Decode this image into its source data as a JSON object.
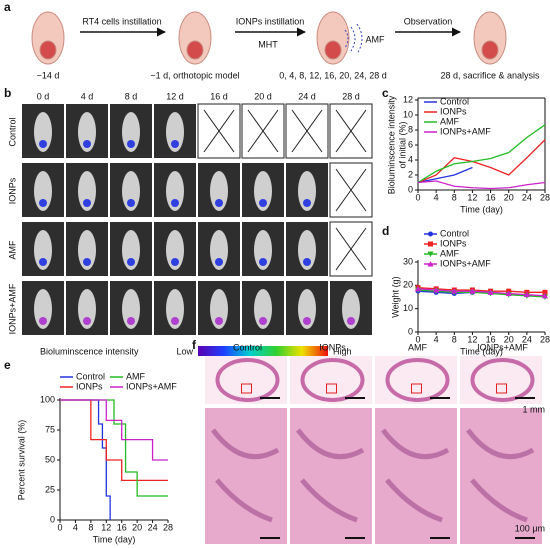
{
  "panels": {
    "labels": [
      "a",
      "b",
      "c",
      "d",
      "e",
      "f"
    ]
  },
  "timeline": {
    "steps": [
      "−14 d",
      "−1 d, orthotopic model",
      "0, 4, 8, 12, 16, 20, 24, 28 d",
      "28 d, sacrifice & analysis"
    ],
    "arrows": [
      "RT4 cells instillation",
      "IONPs instillation",
      "Observation"
    ],
    "under_arrow": "MHT",
    "field": "AMF"
  },
  "imaging": {
    "days": [
      "0 d",
      "4 d",
      "8 d",
      "12 d",
      "16 d",
      "20 d",
      "24 d",
      "28 d"
    ],
    "groups": [
      "Control",
      "IONPs",
      "AMF",
      "IONPs+AMF"
    ],
    "crossed": [
      [
        false,
        false,
        false,
        false,
        true,
        true,
        true,
        true
      ],
      [
        false,
        false,
        false,
        false,
        false,
        false,
        false,
        true
      ],
      [
        false,
        false,
        false,
        false,
        false,
        false,
        false,
        true
      ],
      [
        false,
        false,
        false,
        false,
        false,
        false,
        false,
        false
      ]
    ],
    "scale_title": "Bioluminscence intensity",
    "scale_low": "Low",
    "scale_high": "High"
  },
  "histology": {
    "groups": [
      "Control",
      "IONPs",
      "AMF",
      "IONPs+AMF"
    ],
    "scale_top": "1 mm",
    "scale_bottom": "100 μm"
  },
  "chart_data": [
    {
      "type": "line",
      "ylabel": [
        "Bioluminscence intensity",
        "of initial (%)"
      ],
      "xlabel": "Time (day)",
      "x": [
        0,
        4,
        8,
        12,
        16,
        20,
        24,
        28
      ],
      "xlim": [
        0,
        28
      ],
      "xticks": [
        0,
        4,
        8,
        12,
        16,
        20,
        24,
        28
      ],
      "ylim": [
        0,
        12
      ],
      "yticks": [
        0,
        2,
        4,
        6,
        8,
        10,
        12
      ],
      "markers": false,
      "series": [
        {
          "name": "Control",
          "color": "#2233dd",
          "values": [
            1,
            1.5,
            2,
            3,
            null,
            null,
            null,
            null
          ]
        },
        {
          "name": "IONPs",
          "color": "#ee2222",
          "values": [
            1,
            2,
            4.3,
            3.8,
            3,
            2,
            4.3,
            6.7
          ]
        },
        {
          "name": "AMF",
          "color": "#22bb22",
          "values": [
            1,
            2.5,
            3.5,
            3.8,
            4.2,
            5,
            7,
            8.7
          ]
        },
        {
          "name": "IONPs+AMF",
          "color": "#cc22cc",
          "values": [
            1,
            1.2,
            0.5,
            0.3,
            0.2,
            0.3,
            0.7,
            1.0
          ]
        }
      ]
    },
    {
      "type": "line",
      "ylabel": "Weight (g)",
      "xlabel": "Time (day)",
      "x": [
        0,
        4,
        8,
        12,
        16,
        20,
        24,
        28
      ],
      "xlim": [
        0,
        28
      ],
      "xticks": [
        0,
        4,
        8,
        12,
        16,
        20,
        24,
        28
      ],
      "ylim": [
        0,
        30
      ],
      "yticks": [
        0,
        10,
        20,
        30
      ],
      "markers": true,
      "series": [
        {
          "name": "Control",
          "color": "#2233dd",
          "marker": "circle",
          "values": [
            17.5,
            17,
            16.5,
            17,
            null,
            null,
            null,
            null
          ]
        },
        {
          "name": "IONPs",
          "color": "#ee2222",
          "marker": "square",
          "values": [
            19,
            18.5,
            18,
            18,
            17.5,
            17.5,
            17,
            17
          ]
        },
        {
          "name": "AMF",
          "color": "#22bb22",
          "marker": "triangle",
          "values": [
            18,
            17.5,
            17,
            17,
            16.5,
            16,
            15.5,
            15
          ]
        },
        {
          "name": "IONPs+AMF",
          "color": "#cc22cc",
          "marker": "down",
          "values": [
            18.5,
            18,
            17.5,
            17.5,
            17,
            16.5,
            16,
            15.5
          ]
        }
      ]
    },
    {
      "type": "step",
      "ylabel": "Percent survival (%)",
      "xlabel": "Time (day)",
      "xlim": [
        0,
        28
      ],
      "xticks": [
        0,
        4,
        8,
        12,
        16,
        20,
        24,
        28
      ],
      "ylim": [
        0,
        100
      ],
      "yticks": [
        0,
        25,
        50,
        75,
        100
      ],
      "markers": false,
      "series": [
        {
          "name": "Control",
          "color": "#2233dd",
          "x": [
            0,
            10,
            11,
            12,
            13
          ],
          "values": [
            100,
            80,
            60,
            20,
            0
          ]
        },
        {
          "name": "IONPs",
          "color": "#ee2222",
          "x": [
            0,
            8,
            12,
            16,
            28
          ],
          "values": [
            100,
            67,
            50,
            33,
            33
          ]
        },
        {
          "name": "AMF",
          "color": "#22bb22",
          "x": [
            0,
            14,
            17,
            20,
            28
          ],
          "values": [
            100,
            80,
            40,
            20,
            20
          ]
        },
        {
          "name": "IONPs+AMF",
          "color": "#cc22cc",
          "x": [
            0,
            12,
            16,
            24,
            28
          ],
          "values": [
            100,
            83,
            67,
            50,
            50
          ]
        }
      ]
    }
  ]
}
